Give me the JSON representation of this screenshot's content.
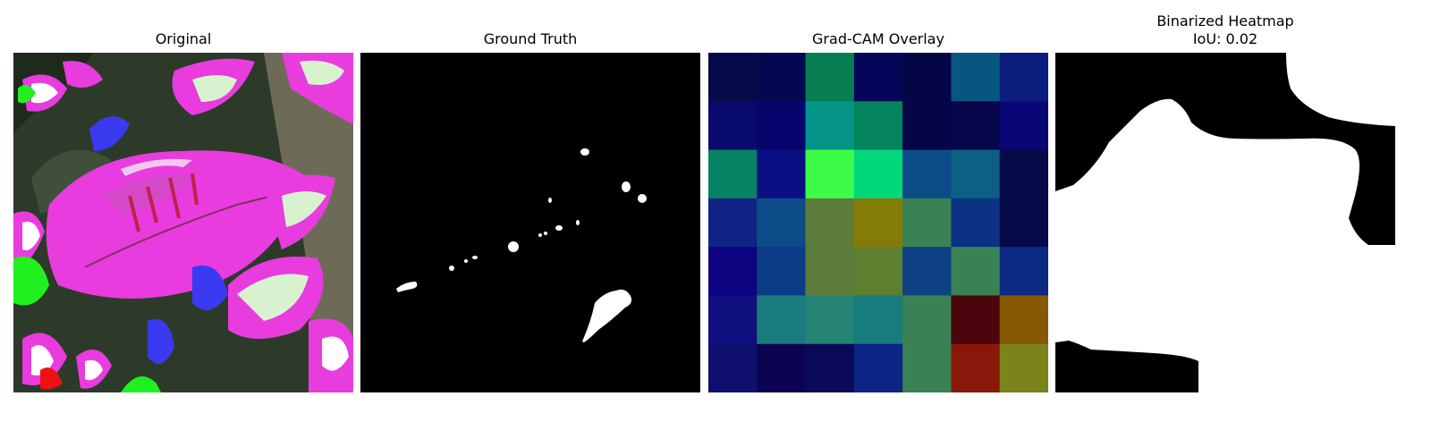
{
  "panels": [
    {
      "title": "Original"
    },
    {
      "title": "Ground Truth"
    },
    {
      "title": "Grad-CAM Overlay"
    },
    {
      "title": "Binarized Heatmap",
      "subtitle": "IoU: 0.02"
    }
  ],
  "gradcam": {
    "rows": 7,
    "cols": 7,
    "cell_colors": [
      [
        "#060a4a",
        "#050850",
        "#067e52",
        "#05055a",
        "#050646",
        "#075682",
        "#0b1e7d"
      ],
      [
        "#080a6c",
        "#06056e",
        "#049488",
        "#04845c",
        "#050548",
        "#07064a",
        "#090775"
      ],
      [
        "#088264",
        "#0b0f84",
        "#3cfc48",
        "#02d87a",
        "#0c4c88",
        "#0b6084",
        "#070a48"
      ],
      [
        "#0f2484",
        "#0c4c88",
        "#5c7c3c",
        "#847c08",
        "#3a8254",
        "#0c3284",
        "#070a48"
      ],
      [
        "#0c0480",
        "#0c3c88",
        "#5c7c3c",
        "#5c8030",
        "#0e4284",
        "#3a8254",
        "#0c2a84"
      ],
      [
        "#0f0f80",
        "#1a7c7e",
        "#258474",
        "#187c7c",
        "#3a8254",
        "#4b050c",
        "#845804"
      ],
      [
        "#0f0f70",
        "#0c0452",
        "#0a0a58",
        "#0c2484",
        "#3a8254",
        "#8a180a",
        "#7a841a"
      ]
    ]
  }
}
